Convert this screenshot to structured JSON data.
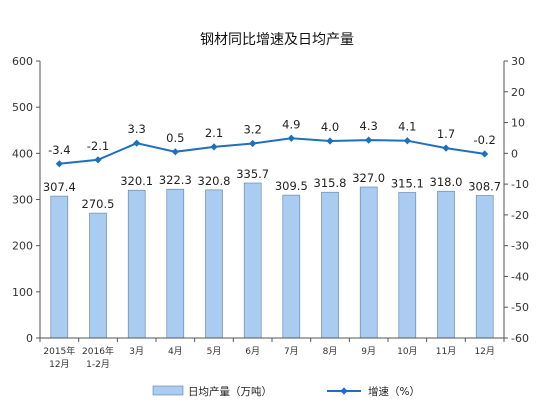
{
  "chart_data": {
    "type": "bar",
    "title": "钢材同比增速及日均产量",
    "categories": [
      [
        "2015年",
        "12月"
      ],
      [
        "2016年",
        "1-2月"
      ],
      [
        "3月"
      ],
      [
        "4月"
      ],
      [
        "5月"
      ],
      [
        "6月"
      ],
      [
        "7月"
      ],
      [
        "8月"
      ],
      [
        "9月"
      ],
      [
        "10月"
      ],
      [
        "11月"
      ],
      [
        "12月"
      ]
    ],
    "series": [
      {
        "name": "日均产量（万吨）",
        "type": "bar",
        "axis": "left",
        "color": "#a9ccf0",
        "values": [
          307.4,
          270.5,
          320.1,
          322.3,
          320.8,
          335.7,
          309.5,
          315.8,
          327.0,
          315.1,
          318.0,
          308.7
        ],
        "labels": [
          "307.4",
          "270.5",
          "320.1",
          "322.3",
          "320.8",
          "335.7",
          "309.5",
          "315.8",
          "327.0",
          "315.1",
          "318.0",
          "308.7"
        ]
      },
      {
        "name": "增速（%）",
        "type": "line",
        "axis": "right",
        "color": "#1f6fbf",
        "values": [
          -3.4,
          -2.1,
          3.3,
          0.5,
          2.1,
          3.2,
          4.9,
          4.0,
          4.3,
          4.1,
          1.7,
          -0.2
        ],
        "labels": [
          "-3.4",
          "-2.1",
          "3.3",
          "0.5",
          "2.1",
          "3.2",
          "4.9",
          "4.0",
          "4.3",
          "4.1",
          "1.7",
          "-0.2"
        ]
      }
    ],
    "y_left": {
      "ylim": [
        0,
        600
      ],
      "ticks": [
        0,
        100,
        200,
        300,
        400,
        500,
        600
      ]
    },
    "y_right": {
      "ylim": [
        -60,
        30
      ],
      "ticks": [
        -60,
        -50,
        -40,
        -30,
        -20,
        -10,
        0,
        10,
        20,
        30
      ]
    },
    "grid": false,
    "legend_position": "bottom"
  }
}
